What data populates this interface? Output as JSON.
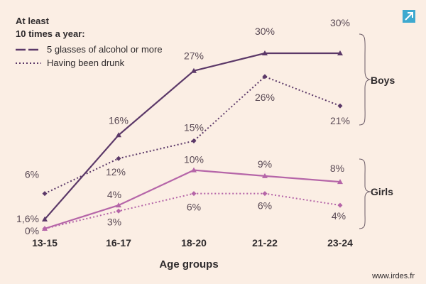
{
  "chart_data": {
    "type": "line",
    "xlabel": "Age groups",
    "categories": [
      "13-15",
      "16-17",
      "18-20",
      "21-22",
      "23-24"
    ],
    "legend_title": [
      "At least",
      "10 times a year:"
    ],
    "legend_position": "top-left",
    "grid": false,
    "series": [
      {
        "name": "5 glasses of alcohol or more",
        "group": "Boys",
        "style": "solid",
        "marker": "triangle",
        "color": "#5b3868",
        "values": [
          1.6,
          16,
          27,
          30,
          30
        ],
        "labels": [
          "1,6%",
          "16%",
          "27%",
          "30%",
          "30%"
        ]
      },
      {
        "name": "Having been drunk",
        "group": "Boys",
        "style": "dotted",
        "marker": "diamond",
        "color": "#5b3868",
        "values": [
          6,
          12,
          15,
          26,
          21
        ],
        "labels": [
          "6%",
          "12%",
          "15%",
          "26%",
          "21%"
        ]
      },
      {
        "name": "5 glasses of alcohol or more",
        "group": "Girls",
        "style": "solid",
        "marker": "triangle",
        "color": "#b565a8",
        "values": [
          0,
          4,
          10,
          9,
          8
        ],
        "labels": [
          "0%",
          "4%",
          "10%",
          "9%",
          "8%"
        ]
      },
      {
        "name": "Having been drunk",
        "group": "Girls",
        "style": "dotted",
        "marker": "diamond",
        "color": "#b565a8",
        "values": [
          0,
          3,
          6,
          6,
          4
        ],
        "labels": [
          "",
          "3%",
          "6%",
          "6%",
          "4%"
        ]
      }
    ],
    "groups": [
      "Boys",
      "Girls"
    ]
  },
  "source": "www.irdes.fr",
  "icon": "expand-arrow-icon",
  "colors": {
    "background": "#fbeee4",
    "boys": "#5b3868",
    "girls": "#b565a8",
    "icon": "#3ea9cf"
  }
}
